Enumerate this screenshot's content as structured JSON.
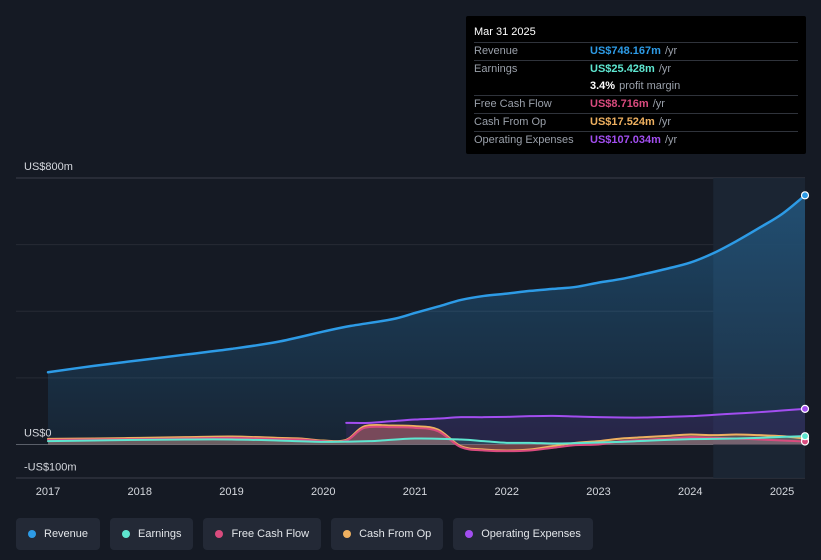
{
  "colors": {
    "revenue": "#2d9be6",
    "earnings": "#5ee6d0",
    "free_cash_flow": "#d94b7e",
    "cash_from_op": "#eeb060",
    "operating_expenses": "#a24ef0"
  },
  "tooltip": {
    "date": "Mar 31 2025",
    "rows": [
      {
        "label": "Revenue",
        "value": "US$748.167m",
        "unit": "/yr"
      },
      {
        "label": "Earnings",
        "value": "US$25.428m",
        "unit": "/yr"
      },
      {
        "label": "",
        "value": "3.4%",
        "unit": "profit margin"
      },
      {
        "label": "Free Cash Flow",
        "value": "US$8.716m",
        "unit": "/yr"
      },
      {
        "label": "Cash From Op",
        "value": "US$17.524m",
        "unit": "/yr"
      },
      {
        "label": "Operating Expenses",
        "value": "US$107.034m",
        "unit": "/yr"
      }
    ]
  },
  "legend": [
    {
      "label": "Revenue",
      "icon": "dot-icon"
    },
    {
      "label": "Earnings",
      "icon": "dot-icon"
    },
    {
      "label": "Free Cash Flow",
      "icon": "dot-icon"
    },
    {
      "label": "Cash From Op",
      "icon": "dot-icon"
    },
    {
      "label": "Operating Expenses",
      "icon": "dot-icon"
    }
  ],
  "chart_data": {
    "type": "area",
    "title": "",
    "xlabel": "",
    "ylabel": "",
    "ylim": [
      -100,
      800
    ],
    "ytick_labels": [
      "US$800m",
      "US$0",
      "-US$100m"
    ],
    "ytick_values": [
      800,
      0,
      -100
    ],
    "xticks": [
      "2017",
      "2018",
      "2019",
      "2020",
      "2021",
      "2022",
      "2023",
      "2024",
      "2025"
    ],
    "xtick_values": [
      2017,
      2018,
      2019,
      2020,
      2021,
      2022,
      2023,
      2024,
      2025
    ],
    "xlim": [
      2016.65,
      2025.25
    ],
    "highlight_range": [
      2024.25,
      2025.25
    ],
    "series": [
      {
        "name": "Revenue",
        "x": [
          2017.0,
          2017.5,
          2018.0,
          2018.5,
          2019.0,
          2019.5,
          2020.0,
          2020.3,
          2020.75,
          2021.0,
          2021.25,
          2021.5,
          2021.75,
          2022.0,
          2022.25,
          2022.5,
          2022.75,
          2023.0,
          2023.25,
          2023.5,
          2023.75,
          2024.0,
          2024.25,
          2024.5,
          2024.75,
          2025.0,
          2025.25
        ],
        "values": [
          217,
          236,
          253,
          270,
          287,
          308,
          339,
          356,
          376,
          395,
          414,
          434,
          446,
          453,
          461,
          467,
          473,
          486,
          497,
          512,
          528,
          546,
          574,
          610,
          650,
          692,
          748
        ]
      },
      {
        "name": "Earnings",
        "x": [
          2017.0,
          2017.5,
          2018.0,
          2018.5,
          2019.0,
          2019.5,
          2020.0,
          2020.5,
          2021.0,
          2021.5,
          2021.75,
          2022.0,
          2022.25,
          2022.5,
          2022.75,
          2023.0,
          2023.25,
          2023.5,
          2023.75,
          2024.0,
          2024.25,
          2024.5,
          2024.75,
          2025.0,
          2025.25
        ],
        "values": [
          10,
          12,
          14,
          15,
          15,
          12,
          8,
          10,
          18,
          15,
          10,
          5,
          5,
          3,
          4,
          6,
          8,
          11,
          14,
          16,
          17,
          18,
          20,
          23,
          25
        ]
      },
      {
        "name": "Free Cash Flow",
        "x": [
          2017.0,
          2017.5,
          2018.0,
          2018.5,
          2019.0,
          2019.5,
          2019.75,
          2020.0,
          2020.25,
          2020.45,
          2020.75,
          2021.0,
          2021.25,
          2021.5,
          2021.75,
          2022.0,
          2022.25,
          2022.5,
          2022.75,
          2023.0,
          2023.25,
          2023.5,
          2023.75,
          2024.0,
          2024.25,
          2024.5,
          2024.75,
          2025.0,
          2025.25
        ],
        "values": [
          14,
          15,
          16,
          18,
          20,
          16,
          15,
          10,
          12,
          50,
          52,
          50,
          40,
          -8,
          -18,
          -20,
          -18,
          -10,
          -2,
          0,
          10,
          14,
          18,
          22,
          20,
          18,
          15,
          12,
          9
        ]
      },
      {
        "name": "Cash From Op",
        "x": [
          2017.0,
          2017.5,
          2018.0,
          2018.5,
          2019.0,
          2019.5,
          2019.75,
          2020.0,
          2020.25,
          2020.45,
          2020.75,
          2021.0,
          2021.25,
          2021.5,
          2021.75,
          2022.0,
          2022.25,
          2022.5,
          2022.75,
          2023.0,
          2023.25,
          2023.5,
          2023.75,
          2024.0,
          2024.25,
          2024.5,
          2024.75,
          2025.0,
          2025.25
        ],
        "values": [
          17,
          18,
          20,
          22,
          24,
          20,
          18,
          12,
          14,
          55,
          57,
          55,
          45,
          -5,
          -15,
          -18,
          -15,
          -5,
          5,
          10,
          18,
          22,
          26,
          30,
          28,
          30,
          28,
          25,
          17.5
        ]
      },
      {
        "name": "Operating Expenses",
        "x": [
          2020.25,
          2020.5,
          2020.75,
          2021.0,
          2021.25,
          2021.5,
          2021.75,
          2022.0,
          2022.25,
          2022.5,
          2022.75,
          2023.0,
          2023.25,
          2023.5,
          2023.75,
          2024.0,
          2024.25,
          2024.5,
          2024.75,
          2025.0,
          2025.25
        ],
        "values": [
          65,
          65,
          70,
          75,
          78,
          82,
          82,
          83,
          85,
          86,
          84,
          82,
          81,
          81,
          83,
          85,
          89,
          93,
          97,
          102,
          107
        ]
      }
    ]
  }
}
